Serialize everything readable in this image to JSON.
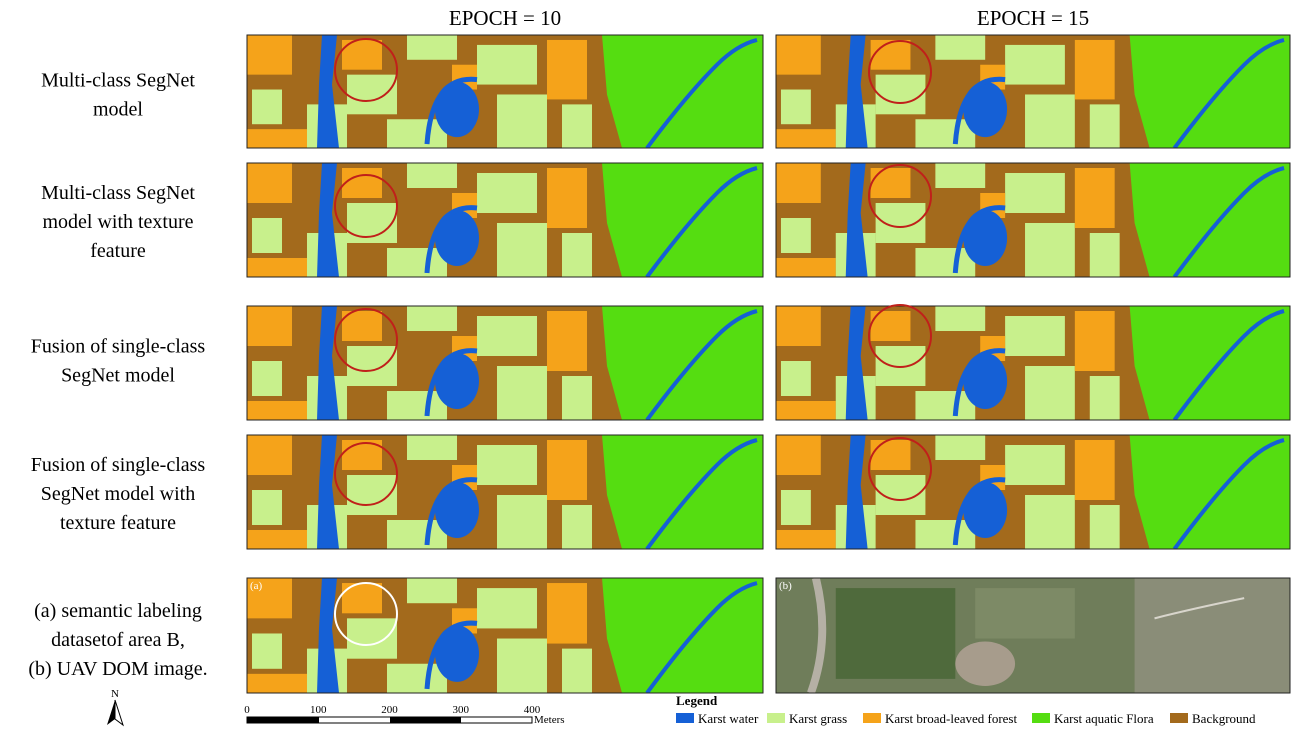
{
  "columns": [
    "EPOCH = 10",
    "EPOCH = 15"
  ],
  "rows": [
    [
      "Multi-class  SegNet",
      "model"
    ],
    [
      "Multi-class  SegNet",
      "model with texture",
      "feature"
    ],
    [
      "Fusion of  single-class",
      "SegNet model"
    ],
    [
      "Fusion of  single-class",
      "SegNet model with",
      "texture feature"
    ],
    [
      "(a) semantic labeling",
      "datasetof area B,",
      "(b) UAV DOM image."
    ]
  ],
  "panel_labels": [
    "(a)",
    "(b)"
  ],
  "scale_bar": {
    "ticks": [
      0,
      100,
      200,
      300,
      400
    ],
    "unit": "Meters"
  },
  "legend": {
    "title": "Legend",
    "items": [
      "Karst water",
      "Karst grass",
      "Karst broad-leaved forest",
      "Karst aquatic Flora",
      "Background"
    ]
  },
  "north": "N"
}
